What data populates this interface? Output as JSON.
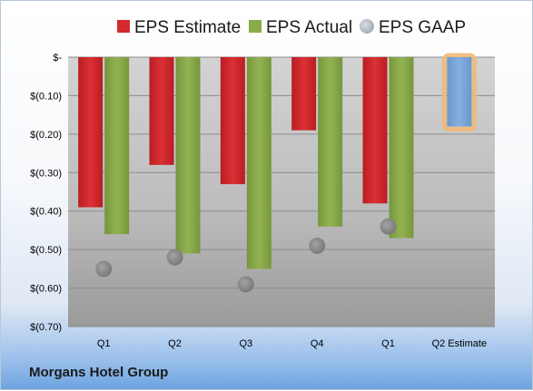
{
  "company_label": "Morgans Hotel Group",
  "chart_data": {
    "type": "bar",
    "categories": [
      "Q1",
      "Q2",
      "Q3",
      "Q4",
      "Q1",
      "Q2 Estimate"
    ],
    "series": [
      {
        "name": "EPS Estimate",
        "color": "#d42a2f",
        "values": [
          -0.39,
          -0.28,
          -0.33,
          -0.19,
          -0.38,
          null
        ]
      },
      {
        "name": "EPS Actual",
        "color": "#8aaa4b",
        "values": [
          -0.46,
          -0.51,
          -0.55,
          -0.44,
          -0.47,
          null
        ]
      },
      {
        "name": "EPS GAAP",
        "color": "#a6aeb8",
        "marker": "circle",
        "values": [
          -0.55,
          -0.52,
          -0.59,
          -0.49,
          -0.44,
          null
        ]
      }
    ],
    "estimate_bar": {
      "category": "Q2 Estimate",
      "value": -0.18,
      "color": "#7ba6d6",
      "highlight": "#f3b877"
    },
    "y_ticks": [
      "$-",
      "$(0.10)",
      "$(0.20)",
      "$(0.30)",
      "$(0.40)",
      "$(0.50)",
      "$(0.60)",
      "$(0.70)"
    ],
    "ylim": [
      -0.7,
      0
    ],
    "grid": true,
    "legend_position": "top"
  }
}
